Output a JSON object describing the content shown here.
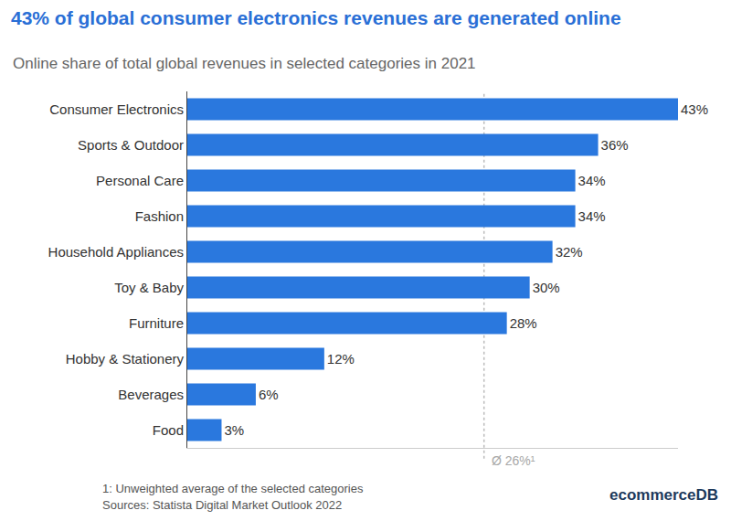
{
  "chart_data": {
    "type": "bar",
    "orientation": "horizontal",
    "title": "43% of global consumer electronics revenues are generated online",
    "subtitle": "Online share of total global revenues in selected categories in 2021",
    "categories": [
      "Consumer Electronics",
      "Sports & Outdoor",
      "Personal Care",
      "Fashion",
      "Household Appliances",
      "Toy & Baby",
      "Furniture",
      "Hobby & Stationery",
      "Beverages",
      "Food"
    ],
    "values": [
      43,
      36,
      34,
      34,
      32,
      30,
      28,
      12,
      6,
      3
    ],
    "value_labels": [
      "43%",
      "36%",
      "34%",
      "34%",
      "32%",
      "30%",
      "28%",
      "12%",
      "6%",
      "3%"
    ],
    "color": "#2a78de",
    "xlim": [
      0,
      43
    ],
    "grid": false,
    "data_labels": true,
    "tick_labels": "y",
    "average": {
      "value": 26,
      "label": "Ø 26%¹"
    },
    "footnote": "1: Unweighted average of the selected categories",
    "source": "Sources: Statista Digital Market Outlook 2022",
    "brand": "ecommerceDB"
  }
}
